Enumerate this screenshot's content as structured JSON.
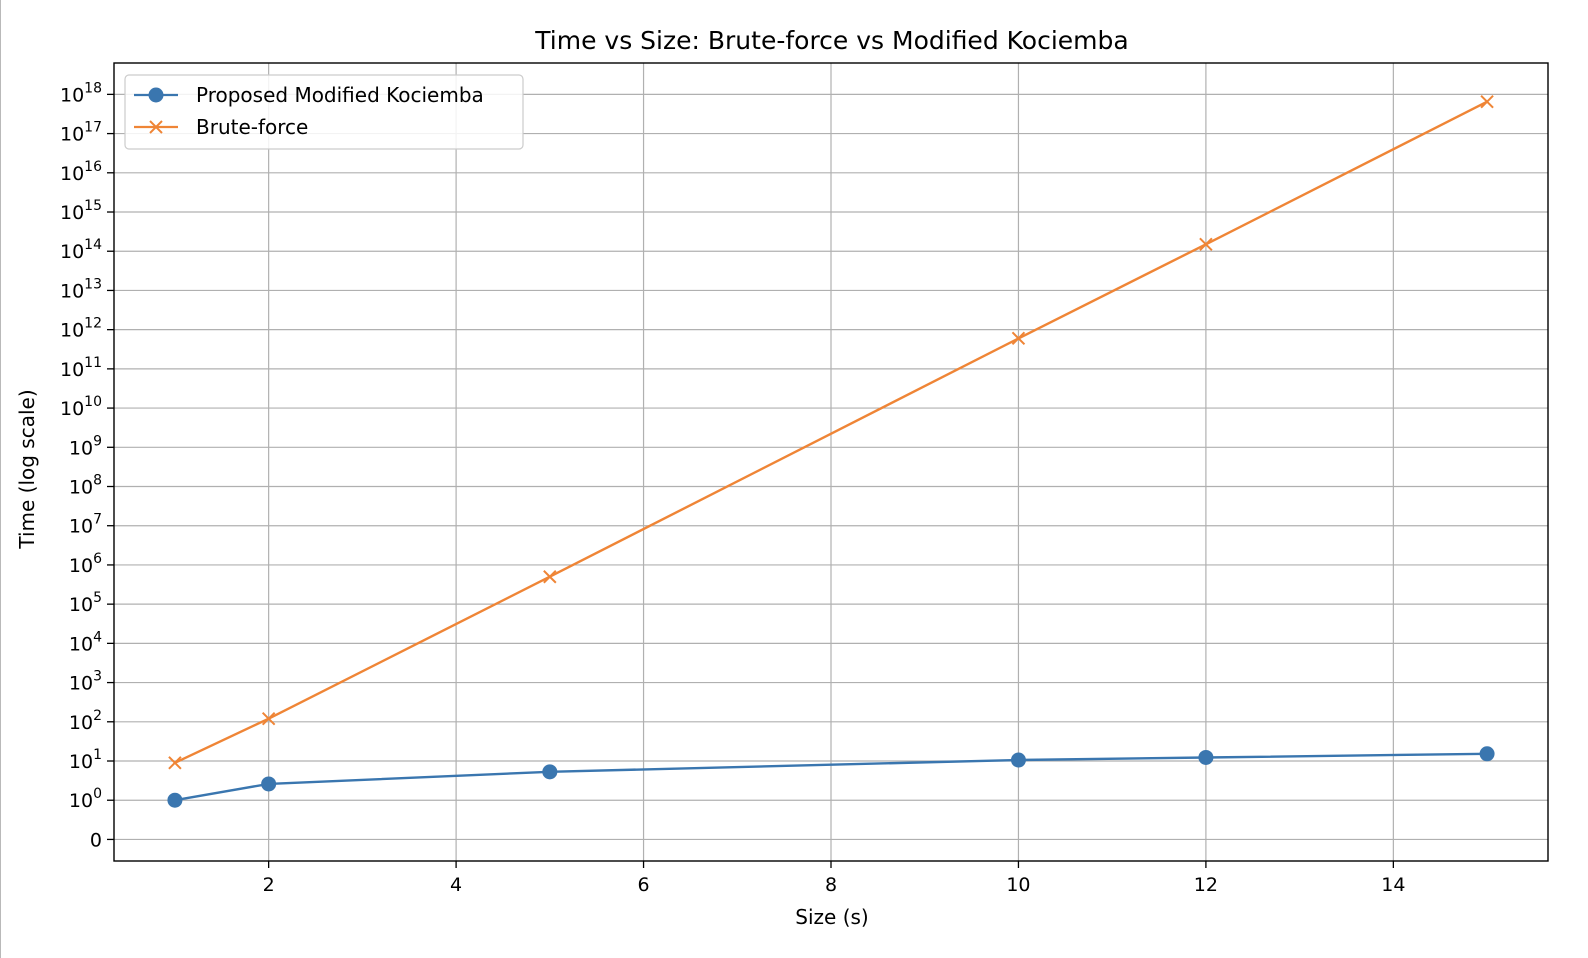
{
  "chart_data": {
    "type": "line",
    "title": "Time vs Size: Brute-force vs Modified Kociemba",
    "xlabel": "Size (s)",
    "ylabel": "Time (log scale)",
    "y_scale": "symlog",
    "xlim": [
      0.35,
      15.65
    ],
    "x_ticks": [
      2,
      4,
      6,
      8,
      10,
      12,
      14
    ],
    "y_ticks": [
      {
        "value": 0,
        "base": "0",
        "exp": ""
      },
      {
        "value": 1,
        "base": "10",
        "exp": "0"
      },
      {
        "value": 10,
        "base": "10",
        "exp": "1"
      },
      {
        "value": 100,
        "base": "10",
        "exp": "2"
      },
      {
        "value": 1000,
        "base": "10",
        "exp": "3"
      },
      {
        "value": 10000,
        "base": "10",
        "exp": "4"
      },
      {
        "value": 100000,
        "base": "10",
        "exp": "5"
      },
      {
        "value": 1000000,
        "base": "10",
        "exp": "6"
      },
      {
        "value": 10000000,
        "base": "10",
        "exp": "7"
      },
      {
        "value": 100000000,
        "base": "10",
        "exp": "8"
      },
      {
        "value": 1000000000,
        "base": "10",
        "exp": "9"
      },
      {
        "value": 10000000000,
        "base": "10",
        "exp": "10"
      },
      {
        "value": 100000000000,
        "base": "10",
        "exp": "11"
      },
      {
        "value": 1000000000000,
        "base": "10",
        "exp": "12"
      },
      {
        "value": 10000000000000,
        "base": "10",
        "exp": "13"
      },
      {
        "value": 100000000000000,
        "base": "10",
        "exp": "14"
      },
      {
        "value": 1000000000000000,
        "base": "10",
        "exp": "15"
      },
      {
        "value": 10000000000000000,
        "base": "10",
        "exp": "16"
      },
      {
        "value": 100000000000000000,
        "base": "10",
        "exp": "17"
      },
      {
        "value": 1000000000000000000,
        "base": "10",
        "exp": "18"
      }
    ],
    "grid": true,
    "legend_position": "top-left",
    "series": [
      {
        "name": "Proposed Modified Kociemba",
        "color": "#3a76af",
        "marker": "circle",
        "x": [
          1,
          2,
          5,
          10,
          12,
          15
        ],
        "y": [
          1.0,
          2.6,
          5.3,
          10.6,
          12.3,
          15.3
        ]
      },
      {
        "name": "Brute-force",
        "color": "#ef8536",
        "marker": "x",
        "x": [
          1,
          2,
          5,
          10,
          12,
          15
        ],
        "y": [
          9,
          120,
          500000,
          600000000000,
          150000000000000,
          650000000000000000
        ]
      }
    ]
  }
}
